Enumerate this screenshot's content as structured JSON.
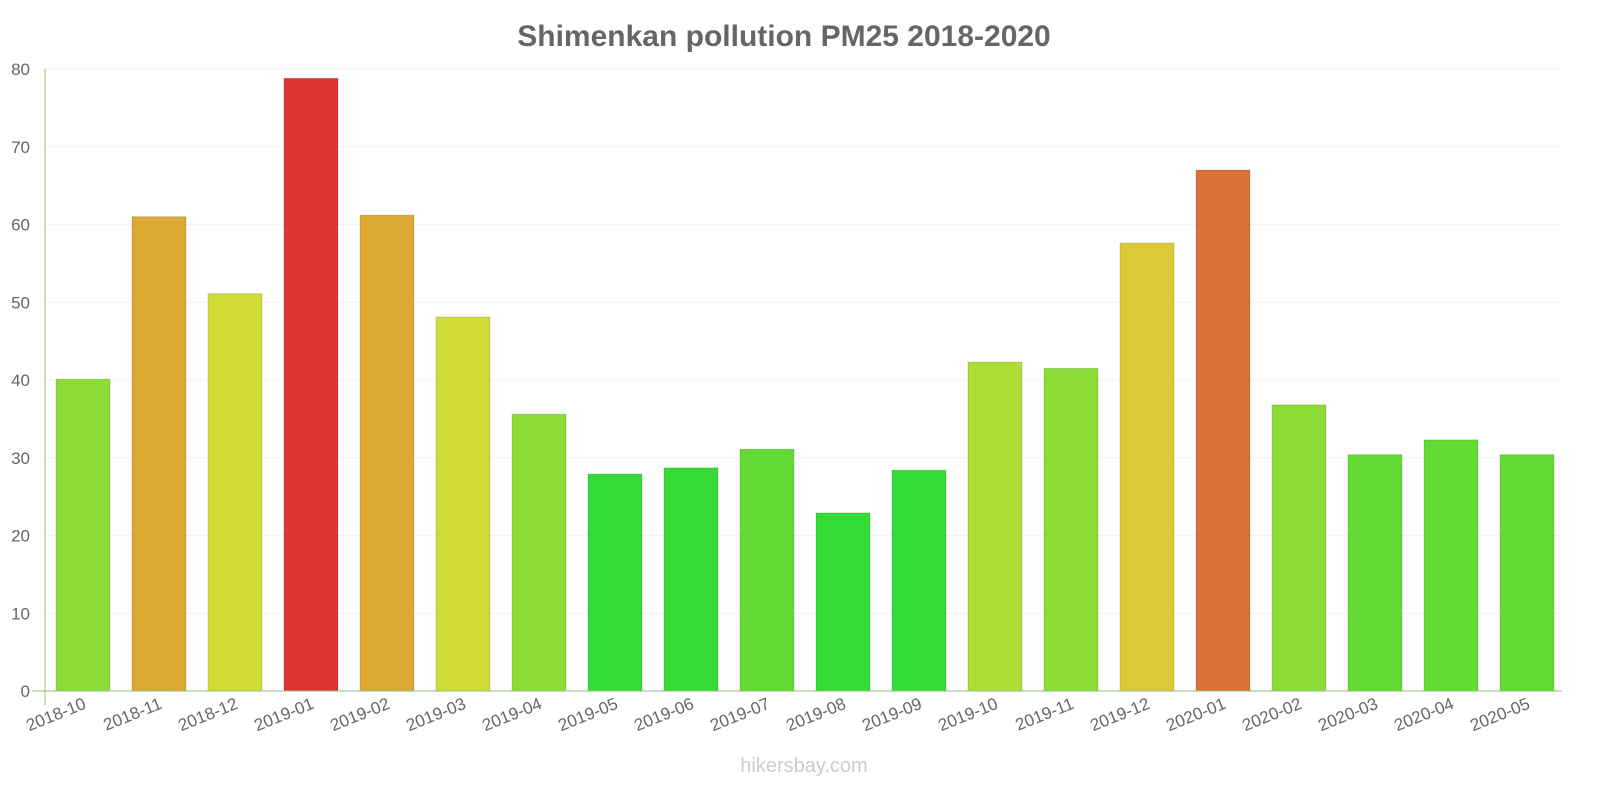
{
  "chart_data": {
    "type": "bar",
    "title": "Shimenkan pollution PM25 2018-2020",
    "xlabel": "",
    "ylabel": "",
    "ylim": [
      0,
      80
    ],
    "yticks": [
      0,
      10,
      20,
      30,
      40,
      50,
      60,
      70,
      80
    ],
    "grid": true,
    "categories": [
      "2018-10",
      "2018-11",
      "2018-12",
      "2019-01",
      "2019-02",
      "2019-03",
      "2019-04",
      "2019-05",
      "2019-06",
      "2019-07",
      "2019-08",
      "2019-09",
      "2019-10",
      "2019-11",
      "2019-12",
      "2020-01",
      "2020-02",
      "2020-03",
      "2020-04",
      "2020-05"
    ],
    "values": [
      40.1,
      61.0,
      51.1,
      78.8,
      61.2,
      48.1,
      35.6,
      27.9,
      28.7,
      31.1,
      22.9,
      28.4,
      42.3,
      41.5,
      57.6,
      67.0,
      36.8,
      30.4,
      32.3,
      30.4
    ],
    "colors": [
      "#8bdd35",
      "#dca934",
      "#d0dc35",
      "#db3535",
      "#dca934",
      "#d0dc35",
      "#8bdd35",
      "#35dc35",
      "#35dc35",
      "#62dc35",
      "#35dc35",
      "#35dc35",
      "#aedd35",
      "#8bdd35",
      "#dcc935",
      "#dc7035",
      "#8bdd35",
      "#62dc35",
      "#62dc35",
      "#62dc35"
    ]
  },
  "watermark": "hikersbay.com"
}
